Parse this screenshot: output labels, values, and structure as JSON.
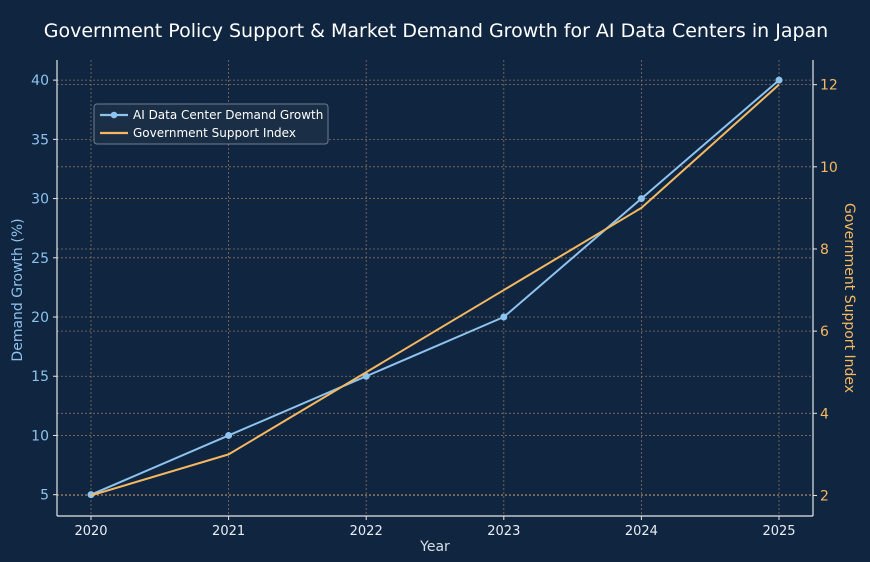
{
  "chart_data": {
    "type": "line",
    "title": "Government Policy Support & Market Demand Growth for AI Data Centers in Japan",
    "xlabel": "Year",
    "ylabel_left": "Demand Growth (%)",
    "ylabel_right": "Government Support Index",
    "x": [
      "2020",
      "2021",
      "2022",
      "2023",
      "2024",
      "2025"
    ],
    "ylim_left": [
      3.2,
      41.7
    ],
    "yticks_left": [
      5,
      10,
      15,
      20,
      25,
      30,
      35,
      40
    ],
    "ylim_right": [
      1.5,
      12.6
    ],
    "yticks_right": [
      2,
      4,
      6,
      8,
      10,
      12
    ],
    "grid": true,
    "legend_position": "upper-left",
    "series": [
      {
        "name": "AI Data Center Demand Growth",
        "axis": "left",
        "marker": "circle",
        "color": "#8ec3ee",
        "values": [
          5,
          10,
          15,
          20,
          30,
          40
        ]
      },
      {
        "name": "Government Support Index",
        "axis": "right",
        "marker": "none",
        "color": "#f5b860",
        "values": [
          2,
          3,
          5,
          7,
          9,
          12
        ]
      }
    ]
  },
  "colors": {
    "background": "#0f2540",
    "grid": "#8a6f5c",
    "axis": "#e6e6e6",
    "legend_bg": "#1a2e46",
    "legend_border": "#6f7f92"
  }
}
